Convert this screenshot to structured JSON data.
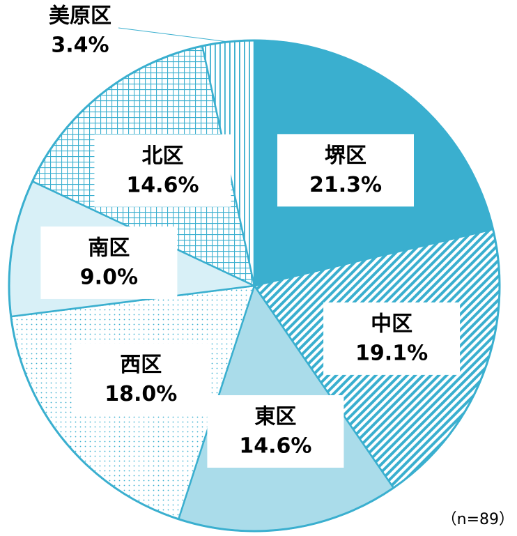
{
  "chart_data": {
    "type": "pie",
    "categories": [
      "堺区",
      "中区",
      "東区",
      "西区",
      "南区",
      "北区",
      "美原区"
    ],
    "values": [
      21.3,
      19.1,
      14.6,
      18.0,
      9.0,
      14.6,
      3.4
    ],
    "value_labels": [
      "21.3%",
      "19.1%",
      "14.6%",
      "18.0%",
      "9.0%",
      "14.6%",
      "3.4%"
    ],
    "colors": [
      "#3aafcf",
      "#3aafcf",
      "#aadcea",
      "#3aafcf",
      "#d8f0f7",
      "#3aafcf",
      "#3aafcf"
    ],
    "patterns": [
      "solid",
      "diagonal",
      "solid",
      "dots",
      "solid",
      "grid",
      "vertical"
    ],
    "note": "（n=89）"
  }
}
